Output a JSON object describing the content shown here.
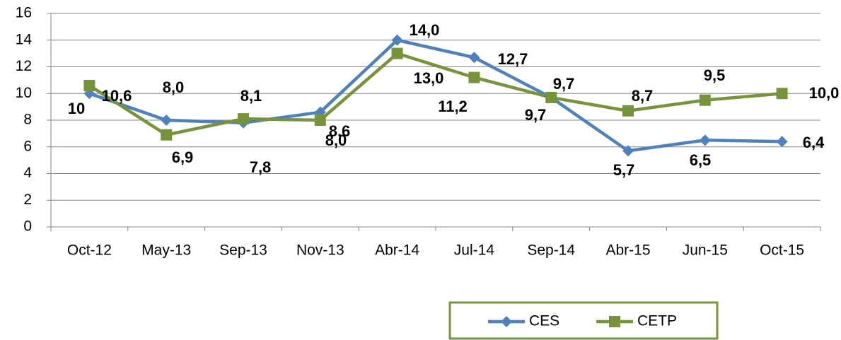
{
  "chart_data": {
    "type": "line",
    "categories": [
      "Oct-12",
      "May-13",
      "Sep-13",
      "Nov-13",
      "Abr-14",
      "Jul-14",
      "Sep-14",
      "Abr-15",
      "Jun-15",
      "Oct-15"
    ],
    "series": [
      {
        "name": "CES",
        "color": "#4f81bd",
        "marker": "diamond",
        "values": [
          10,
          8.0,
          7.8,
          8.6,
          14.0,
          12.7,
          9.7,
          5.7,
          6.5,
          6.4
        ],
        "value_labels": [
          "10",
          "8,0",
          "7,8",
          "8,6",
          "14,0",
          "12,7",
          "9,7",
          "5,7",
          "6,5",
          "6,4"
        ]
      },
      {
        "name": "CETP",
        "color": "#77933c",
        "marker": "square",
        "values": [
          10.6,
          6.9,
          8.1,
          8.0,
          13.0,
          11.2,
          9.7,
          8.7,
          9.5,
          10.0
        ],
        "value_labels": [
          "10,6",
          "6,9",
          "8,1",
          "8,0",
          "13,0",
          "11,2",
          "9,7",
          "8,7",
          "9,5",
          "10,0"
        ]
      }
    ],
    "ylim": [
      0,
      16
    ],
    "yticks": [
      0,
      2,
      4,
      6,
      8,
      10,
      12,
      14,
      16
    ],
    "grid": true,
    "legend": "bottom-right"
  }
}
